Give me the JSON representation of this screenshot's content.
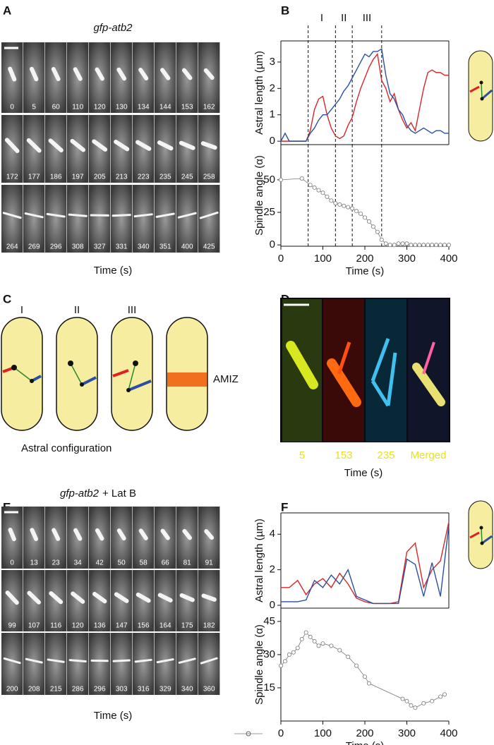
{
  "panels": {
    "A": {
      "label": "A",
      "title_gene": "gfp-atb2",
      "x_label": "Time (s)",
      "times": [
        [
          0,
          5,
          60,
          110,
          120,
          130,
          134,
          144,
          153,
          162
        ],
        [
          172,
          177,
          186,
          197,
          205,
          213,
          223,
          235,
          245,
          258
        ],
        [
          264,
          269,
          296,
          308,
          327,
          331,
          340,
          351,
          400,
          425
        ]
      ]
    },
    "B": {
      "label": "B"
    },
    "C": {
      "label": "C",
      "labels": [
        "I",
        "II",
        "III"
      ],
      "amiz": "AMIZ",
      "caption": "Astral configuration"
    },
    "D": {
      "label": "D",
      "labels": [
        "5",
        "153",
        "235",
        "Merged"
      ],
      "x_label": "Time (s)"
    },
    "E": {
      "label": "E",
      "title_gene": "gfp-atb2",
      "title_suffix": "+ Lat B",
      "x_label": "Time (s)",
      "times": [
        [
          0,
          13,
          23,
          34,
          42,
          50,
          58,
          66,
          81,
          91
        ],
        [
          99,
          107,
          116,
          120,
          136,
          147,
          156,
          164,
          175,
          182
        ],
        [
          200,
          208,
          215,
          286,
          296,
          303,
          316,
          329,
          340,
          360
        ]
      ]
    },
    "F": {
      "label": "F"
    }
  },
  "chart_data": [
    {
      "type": "line",
      "ylabel": "Astral length (µm)",
      "x": [
        0,
        10,
        20,
        30,
        40,
        50,
        60,
        70,
        80,
        90,
        100,
        110,
        120,
        130,
        140,
        150,
        160,
        170,
        180,
        190,
        200,
        210,
        220,
        230,
        240,
        250,
        260,
        270,
        280,
        290,
        300,
        310,
        320,
        330,
        340,
        350,
        360,
        370,
        380,
        390,
        400
      ],
      "series": [
        {
          "color": "#d62728",
          "values": [
            0,
            0,
            0,
            0,
            0,
            0,
            0,
            0.4,
            1.2,
            1.6,
            1.7,
            1.0,
            0.5,
            0.2,
            0.1,
            0.2,
            0.6,
            0.9,
            1.5,
            2.0,
            2.4,
            2.8,
            3.1,
            3.3,
            2.3,
            2.0,
            1.5,
            1.8,
            1.2,
            0.8,
            0.5,
            0.7,
            0.4,
            1.2,
            2.0,
            2.6,
            2.7,
            2.6,
            2.6,
            2.5,
            2.5
          ]
        },
        {
          "color": "#2a4fa3",
          "values": [
            0,
            0.3,
            0,
            0,
            0,
            0,
            0,
            0.3,
            0.5,
            0.8,
            1.0,
            1.0,
            1.2,
            1.4,
            1.6,
            1.9,
            2.1,
            2.4,
            2.7,
            3.0,
            3.3,
            3.2,
            3.4,
            3.4,
            3.5,
            2.5,
            1.8,
            1.6,
            1.2,
            1.0,
            0.6,
            0.4,
            0.3,
            0.4,
            0.5,
            0.4,
            0.3,
            0.4,
            0.4,
            0.3,
            0.3
          ]
        }
      ],
      "xlim": [
        0,
        400
      ],
      "ylim": [
        -0.13,
        3.8
      ],
      "yticks": [
        0,
        1,
        2,
        3
      ],
      "vlines": [
        65,
        130,
        170,
        240
      ],
      "annotations": [
        "I",
        "II",
        "III"
      ]
    },
    {
      "type": "line",
      "ylabel": "Spindle angle (α)",
      "xlabel": "Time (s)",
      "markers": true,
      "x": [
        0,
        50,
        70,
        80,
        90,
        100,
        110,
        120,
        130,
        140,
        150,
        160,
        170,
        180,
        190,
        200,
        210,
        220,
        230,
        240,
        250,
        260,
        270,
        280,
        290,
        300,
        310,
        320,
        330,
        340,
        350,
        360,
        370,
        380,
        390,
        400
      ],
      "series": [
        {
          "color": "#777777",
          "values": [
            50,
            51,
            46,
            44,
            42,
            40,
            37,
            34,
            32,
            31,
            30,
            29,
            28,
            26,
            24,
            21,
            18,
            14,
            10,
            4,
            1,
            0,
            0,
            1,
            1,
            1,
            0,
            0,
            0,
            0,
            0,
            0,
            0,
            0,
            0,
            0
          ]
        }
      ],
      "xlim": [
        0,
        400
      ],
      "ylim": [
        -1,
        77
      ],
      "xticks": [
        0,
        100,
        200,
        300,
        400
      ],
      "yticks": [
        0,
        25,
        50
      ],
      "vlines": [
        65,
        130,
        170,
        240
      ]
    },
    {
      "type": "line",
      "ylabel": "Astral length (µm)",
      "x": [
        0,
        20,
        40,
        60,
        80,
        100,
        120,
        140,
        160,
        180,
        200,
        220,
        240,
        260,
        280,
        300,
        320,
        340,
        360,
        380,
        400
      ],
      "series": [
        {
          "color": "#d62728",
          "values": [
            1.0,
            1.0,
            1.4,
            0.6,
            1.2,
            1.5,
            1.0,
            1.8,
            1.2,
            0.4,
            0.2,
            0.1,
            0.1,
            0.1,
            0.2,
            3.0,
            3.5,
            1.0,
            2.0,
            2.5,
            4.7
          ]
        },
        {
          "color": "#2a4fa3",
          "values": [
            0.2,
            0.2,
            0.2,
            0.3,
            1.4,
            1.0,
            1.7,
            1.2,
            2.0,
            0.5,
            0.3,
            0.1,
            0.1,
            0.1,
            0.1,
            2.6,
            2.3,
            0.5,
            2.4,
            0.5,
            4.5
          ]
        }
      ],
      "xlim": [
        0,
        400
      ],
      "ylim": [
        -0.16,
        5.2
      ],
      "yticks": [
        0,
        2,
        4
      ]
    },
    {
      "type": "line",
      "ylabel": "Spindle angle (α)",
      "xlabel": "Time (s)",
      "markers": true,
      "x": [
        0,
        10,
        20,
        30,
        40,
        50,
        60,
        70,
        80,
        90,
        100,
        120,
        140,
        160,
        180,
        200,
        210,
        290,
        300,
        310,
        320,
        340,
        360,
        380,
        390
      ],
      "series": [
        {
          "color": "#777777",
          "values": [
            25,
            27,
            30,
            31,
            33,
            37,
            40,
            38,
            36,
            34,
            35,
            34,
            32,
            29,
            25,
            20,
            17,
            10,
            9,
            7,
            6,
            8,
            9,
            11,
            12
          ]
        }
      ],
      "xlim": [
        0,
        400
      ],
      "ylim": [
        0,
        51
      ],
      "xticks": [
        0,
        100,
        200,
        300,
        400
      ],
      "yticks": [
        15,
        30,
        45
      ]
    }
  ]
}
